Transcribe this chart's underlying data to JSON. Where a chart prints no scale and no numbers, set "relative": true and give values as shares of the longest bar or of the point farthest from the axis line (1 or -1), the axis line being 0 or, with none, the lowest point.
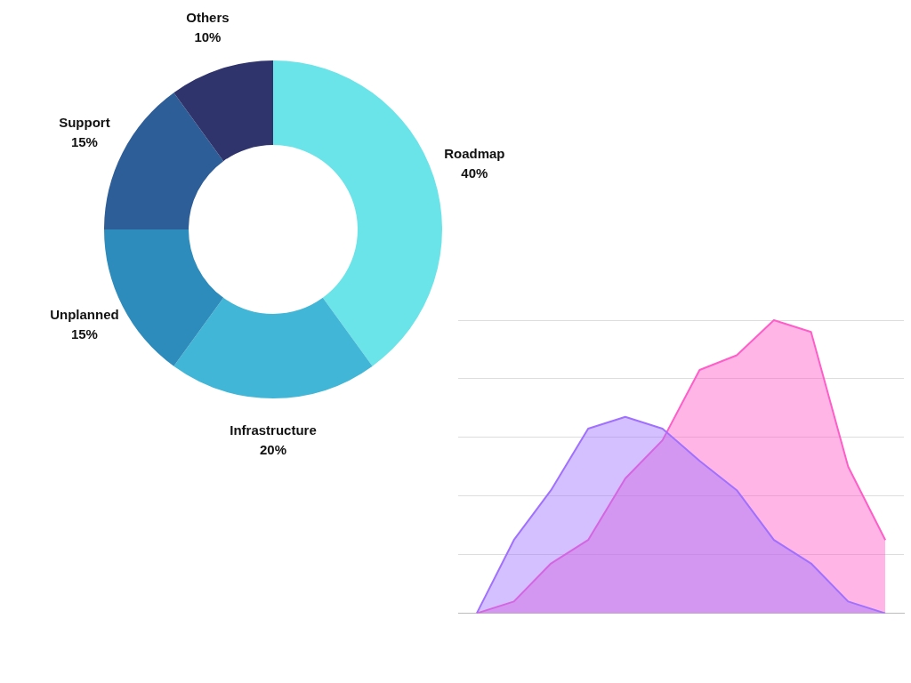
{
  "chart_data": [
    {
      "type": "donut",
      "categories": [
        "Roadmap",
        "Infrastructure",
        "Unplanned",
        "Support",
        "Others"
      ],
      "values": [
        40,
        20,
        15,
        15,
        10
      ],
      "value_labels": [
        "40%",
        "20%",
        "15%",
        "15%",
        "10%"
      ],
      "colors": [
        "#6ae4e8",
        "#42b6d6",
        "#2e8cbc",
        "#2e5e98",
        "#30346c"
      ],
      "legend": false
    },
    {
      "type": "area",
      "relative": true,
      "grid": "y",
      "legend": false,
      "marker": "none",
      "categories": [
        null,
        null,
        null,
        null,
        null,
        null,
        null,
        null,
        null,
        null,
        null,
        null
      ],
      "series": [
        {
          "color": "#a070ff",
          "values": [
            0,
            0.25,
            0.42,
            0.63,
            0.67,
            0.63,
            0.52,
            0.42,
            0.25,
            0.17,
            0.04,
            0
          ]
        },
        {
          "color": "#ff5ec8",
          "values": [
            0,
            0.04,
            0.17,
            0.25,
            0.46,
            0.59,
            0.83,
            0.88,
            1,
            0.96,
            0.5,
            0.25
          ]
        }
      ]
    }
  ]
}
